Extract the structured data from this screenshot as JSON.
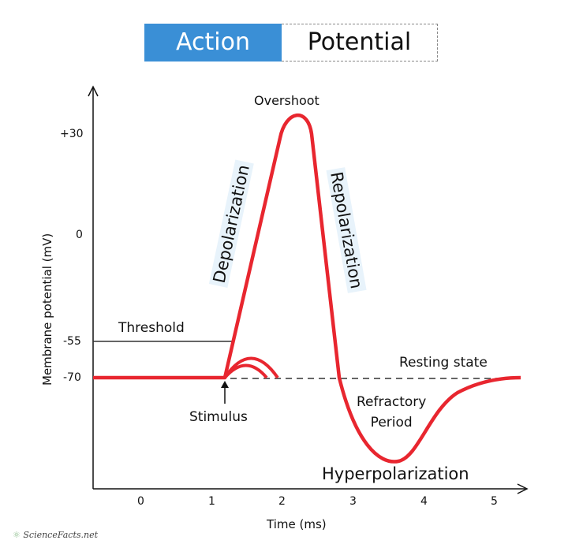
{
  "title": {
    "part1": "Action",
    "part2": "Potential"
  },
  "y_axis": {
    "label": "Membrane potential (mV)",
    "ticks": [
      "+30",
      "0",
      "-55",
      "-70"
    ]
  },
  "x_axis": {
    "label": "Time (ms)",
    "ticks": [
      "0",
      "1",
      "2",
      "3",
      "4",
      "5"
    ]
  },
  "annotations": {
    "overshoot": "Overshoot",
    "depolarization": "Depolarization",
    "repolarization": "Repolarization",
    "threshold": "Threshold",
    "resting": "Resting state",
    "stimulus": "Stimulus",
    "refractory": "Refractory\nPeriod",
    "hyperpolarization": "Hyperpolarization"
  },
  "logo": "ScienceFacts.net",
  "colors": {
    "curve": "#e8262f",
    "title_bg": "#3a8fd6"
  }
}
